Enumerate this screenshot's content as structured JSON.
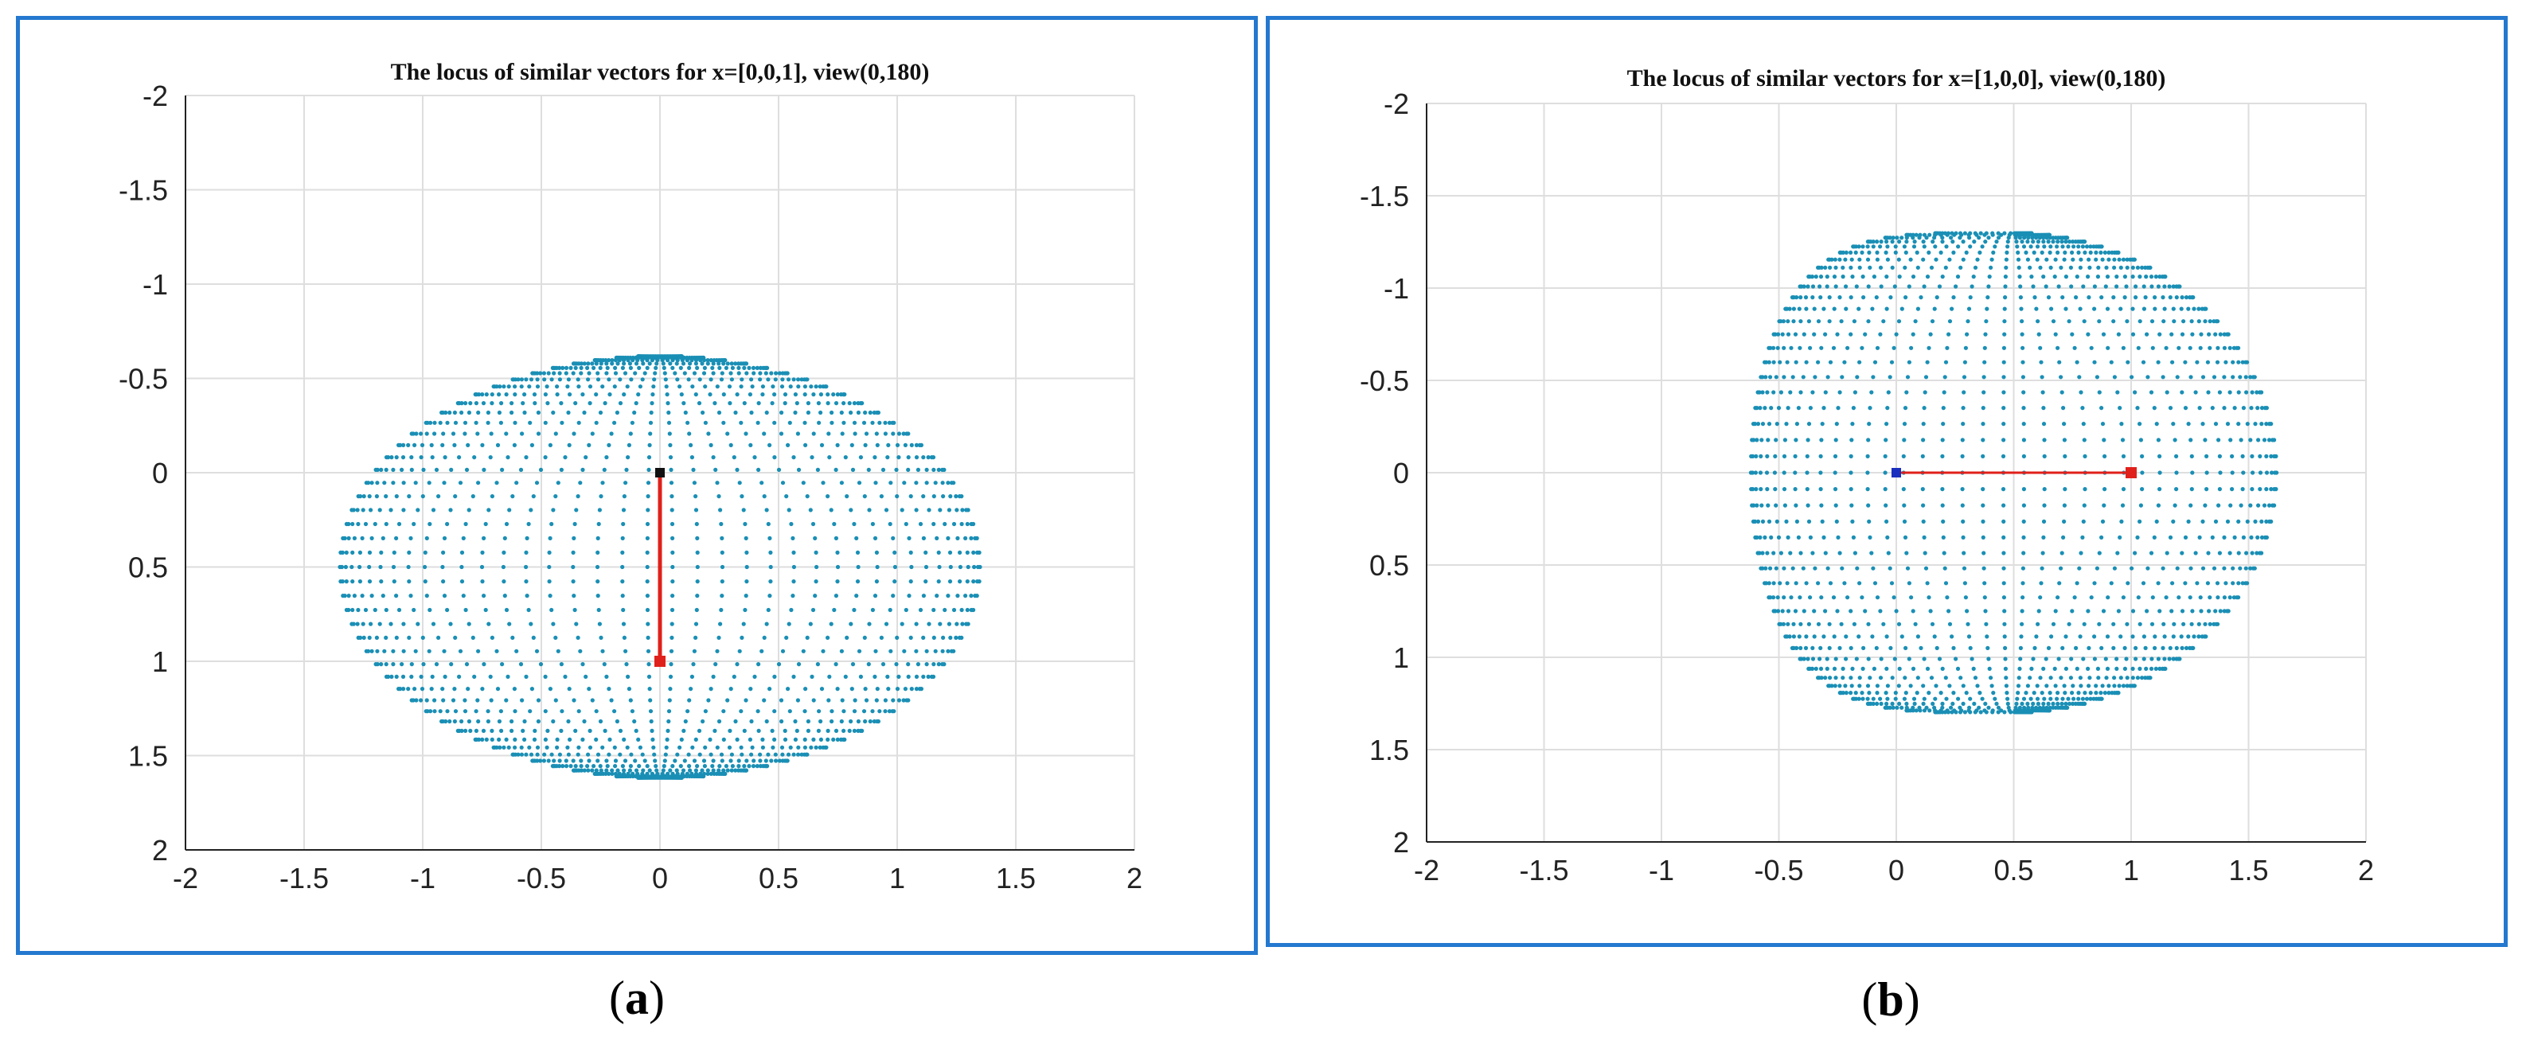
{
  "chart_data": [
    {
      "type": "scatter",
      "title": "The locus of similar vectors for x=[0,0,1], view(0,180)",
      "xlim": [
        -2,
        2
      ],
      "ylim": [
        -2,
        2
      ],
      "y_reversed": true,
      "xticks": [
        "-2",
        "-1.5",
        "-1",
        "-0.5",
        "0",
        "0.5",
        "1",
        "1.5",
        "2"
      ],
      "yticks": [
        "-2",
        "-1.5",
        "-1",
        "-0.5",
        "0",
        "0.5",
        "1",
        "1.5",
        "2"
      ],
      "grid": true,
      "locus": {
        "center": [
          0,
          0.5
        ],
        "rx": 1.35,
        "ry": 1.12,
        "color": "#1a8fb5"
      },
      "vector": {
        "from": [
          0,
          0
        ],
        "to": [
          0,
          1
        ],
        "color": "#e0201a",
        "start_marker_color": "#111111",
        "end_marker_color": "#e0201a"
      }
    },
    {
      "type": "scatter",
      "title": "The locus of similar vectors for x=[1,0,0], view(0,180)",
      "xlim": [
        -2,
        2
      ],
      "ylim": [
        -2,
        2
      ],
      "y_reversed": true,
      "xticks": [
        "-2",
        "-1.5",
        "-1",
        "-0.5",
        "0",
        "0.5",
        "1",
        "1.5",
        "2"
      ],
      "yticks": [
        "-2",
        "-1.5",
        "-1",
        "-0.5",
        "0",
        "0.5",
        "1",
        "1.5",
        "2"
      ],
      "grid": true,
      "locus": {
        "center": [
          0.5,
          0
        ],
        "left_edge": -0.62,
        "right_edge": 1.62,
        "top": -1.3,
        "bottom": 1.3,
        "color": "#1a8fb5"
      },
      "vector": {
        "from": [
          0,
          0
        ],
        "to": [
          1,
          0
        ],
        "color": "#e0201a",
        "start_marker_color": "#1b2fbf",
        "end_marker_color": "#e0201a"
      }
    }
  ],
  "captions": [
    "a",
    "b"
  ]
}
